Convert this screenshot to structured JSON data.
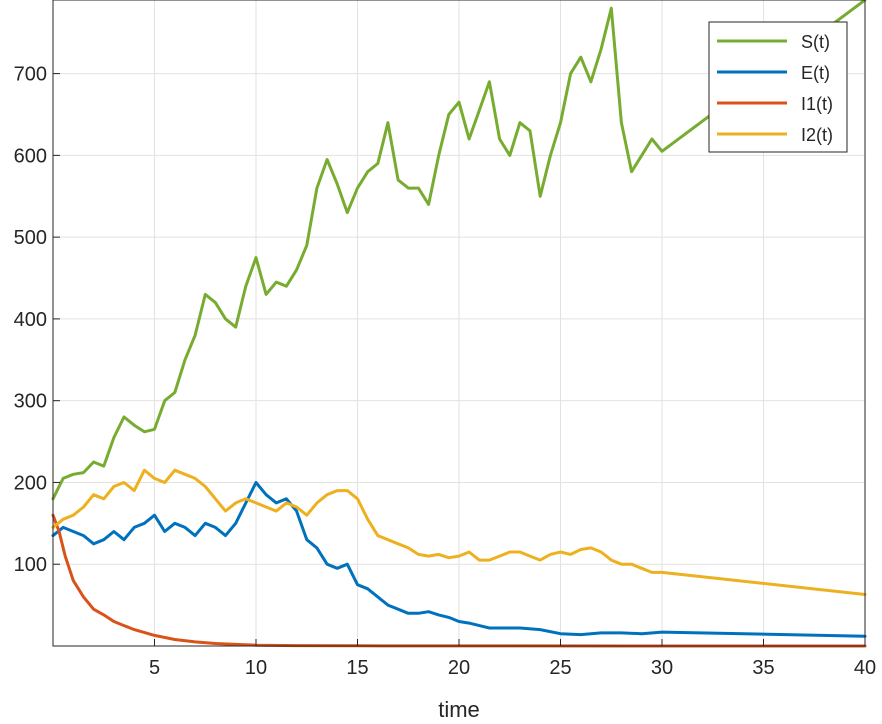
{
  "chart_data": {
    "type": "line",
    "title": "",
    "xlabel": "time",
    "ylabel": "",
    "xlim": [
      0,
      40
    ],
    "ylim": [
      0,
      790
    ],
    "xticks": [
      5,
      10,
      15,
      20,
      25,
      30,
      35,
      40
    ],
    "yticks": [
      100,
      200,
      300,
      400,
      500,
      600,
      700
    ],
    "grid": true,
    "legend": "top-right",
    "series": [
      {
        "name": "S(t)",
        "color": "#77AC30",
        "x": [
          0,
          0.5,
          1,
          1.5,
          2,
          2.5,
          3,
          3.5,
          4,
          4.5,
          5,
          5.5,
          6,
          6.5,
          7,
          7.5,
          8,
          8.5,
          9,
          9.5,
          10,
          10.5,
          11,
          11.5,
          12,
          12.5,
          13,
          13.5,
          14,
          14.5,
          15,
          15.5,
          16,
          16.5,
          17,
          17.5,
          18,
          18.5,
          19,
          19.5,
          20,
          20.5,
          21,
          21.5,
          22,
          22.5,
          23,
          23.5,
          24,
          24.5,
          25,
          25.5,
          26,
          26.5,
          27,
          27.5,
          28,
          28.5,
          29,
          29.5,
          30,
          40
        ],
        "values": [
          180,
          205,
          210,
          212,
          225,
          220,
          255,
          280,
          270,
          262,
          265,
          300,
          310,
          350,
          380,
          430,
          420,
          400,
          390,
          440,
          475,
          430,
          445,
          440,
          460,
          490,
          560,
          595,
          565,
          530,
          560,
          580,
          590,
          640,
          570,
          560,
          560,
          540,
          600,
          650,
          665,
          620,
          655,
          690,
          620,
          600,
          640,
          630,
          550,
          600,
          640,
          700,
          720,
          690,
          730,
          780,
          640,
          580,
          600,
          620,
          605,
          790
        ]
      },
      {
        "name": "E(t)",
        "color": "#0072BD",
        "x": [
          0,
          0.5,
          1,
          1.5,
          2,
          2.5,
          3,
          3.5,
          4,
          4.5,
          5,
          5.5,
          6,
          6.5,
          7,
          7.5,
          8,
          8.5,
          9,
          9.5,
          10,
          10.5,
          11,
          11.5,
          12,
          12.5,
          13,
          13.5,
          14,
          14.5,
          15,
          15.5,
          16,
          16.5,
          17,
          17.5,
          18,
          18.5,
          19,
          19.5,
          20,
          20.5,
          21,
          21.5,
          22,
          23,
          24,
          25,
          26,
          27,
          28,
          29,
          30,
          40
        ],
        "values": [
          135,
          145,
          140,
          135,
          125,
          130,
          140,
          130,
          145,
          150,
          160,
          140,
          150,
          145,
          135,
          150,
          145,
          135,
          150,
          175,
          200,
          185,
          175,
          180,
          165,
          130,
          120,
          100,
          95,
          100,
          75,
          70,
          60,
          50,
          45,
          40,
          40,
          42,
          38,
          35,
          30,
          28,
          25,
          22,
          22,
          22,
          20,
          15,
          14,
          16,
          16,
          15,
          17,
          12
        ]
      },
      {
        "name": "I1(t)",
        "color": "#D95319",
        "x": [
          0,
          0.3,
          0.6,
          1,
          1.5,
          2,
          2.5,
          3,
          3.5,
          4,
          5,
          6,
          7,
          8,
          9,
          10,
          12,
          15,
          20,
          30,
          40
        ],
        "values": [
          160,
          140,
          110,
          80,
          60,
          45,
          38,
          30,
          25,
          20,
          13,
          8,
          5,
          3,
          2,
          1,
          0.5,
          0.2,
          0.1,
          0.05,
          0.02
        ]
      },
      {
        "name": "I2(t)",
        "color": "#EDB120",
        "x": [
          0,
          0.5,
          1,
          1.5,
          2,
          2.5,
          3,
          3.5,
          4,
          4.5,
          5,
          5.5,
          6,
          6.5,
          7,
          7.5,
          8,
          8.5,
          9,
          9.5,
          10,
          10.5,
          11,
          11.5,
          12,
          12.5,
          13,
          13.5,
          14,
          14.5,
          15,
          15.5,
          16,
          16.5,
          17,
          17.5,
          18,
          18.5,
          19,
          19.5,
          20,
          20.5,
          21,
          21.5,
          22,
          22.5,
          23,
          23.5,
          24,
          24.5,
          25,
          25.5,
          26,
          26.5,
          27,
          27.5,
          28,
          28.5,
          29,
          29.5,
          30,
          40
        ],
        "values": [
          145,
          155,
          160,
          170,
          185,
          180,
          195,
          200,
          190,
          215,
          205,
          200,
          215,
          210,
          205,
          195,
          180,
          165,
          175,
          180,
          175,
          170,
          165,
          175,
          170,
          160,
          175,
          185,
          190,
          190,
          180,
          155,
          135,
          130,
          125,
          120,
          112,
          110,
          112,
          108,
          110,
          115,
          105,
          105,
          110,
          115,
          115,
          110,
          105,
          112,
          115,
          112,
          118,
          120,
          115,
          105,
          100,
          100,
          95,
          90,
          90,
          63
        ]
      }
    ]
  }
}
